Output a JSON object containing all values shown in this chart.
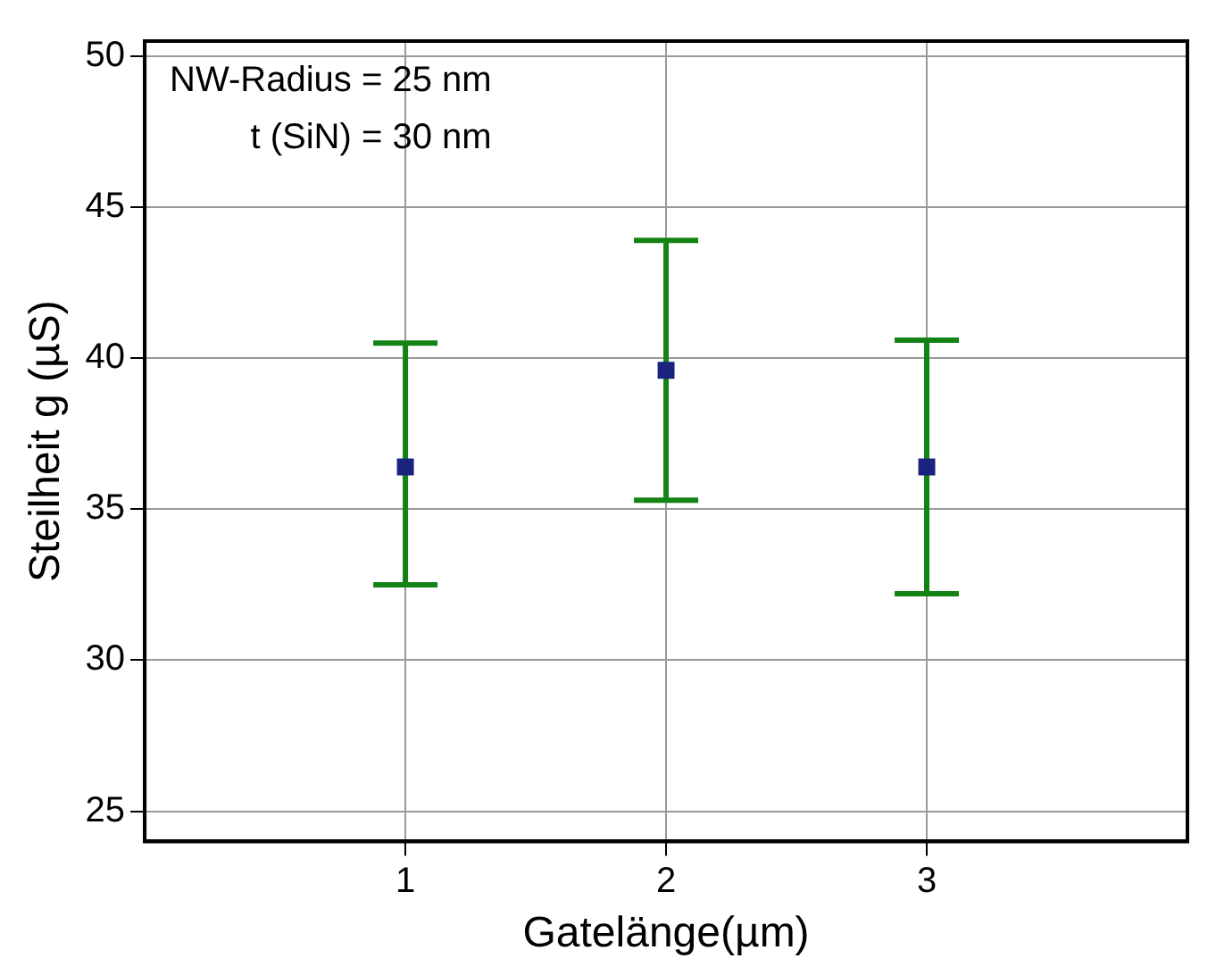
{
  "chart_data": {
    "type": "scatter",
    "xlabel": "Gatelänge(µm)",
    "ylabel": "Steilheit g (µS)",
    "annotations": [
      "NW-Radius = 25 nm",
      "t (SiN) = 30 nm"
    ],
    "x": [
      1,
      2,
      3
    ],
    "series": [
      {
        "color": "#1a237e",
        "values": [
          36.4,
          39.6,
          36.4
        ],
        "errors": [
          [
            32.5,
            40.5
          ],
          [
            35.3,
            43.9
          ],
          [
            32.2,
            40.6
          ]
        ]
      }
    ],
    "xlim": [
      0,
      4
    ],
    "xticks": [
      1,
      2,
      3
    ],
    "ylim": [
      24,
      50.5
    ],
    "yticks": [
      25,
      30,
      35,
      40,
      45,
      50
    ],
    "grid": true,
    "legend": false,
    "marker": "square"
  }
}
